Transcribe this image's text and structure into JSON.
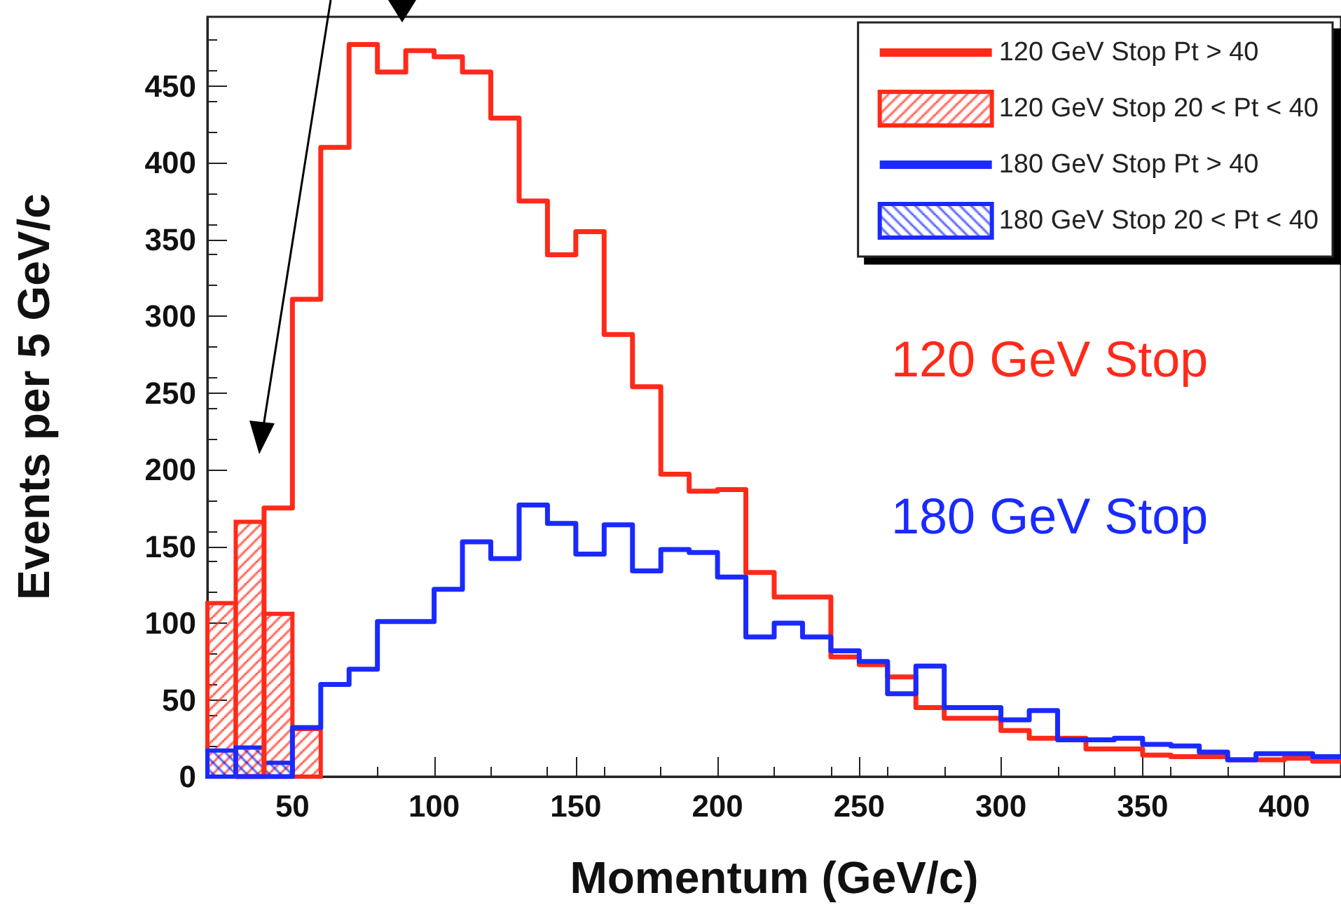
{
  "chart_data": {
    "type": "histogram",
    "xlabel": "Momentum (GeV/c)",
    "ylabel": "Events per 5 GeV/c",
    "bins": [
      20,
      30,
      40,
      50,
      60,
      70,
      80,
      90,
      100,
      110,
      120,
      130,
      140,
      150,
      160,
      170,
      180,
      190,
      200,
      210,
      220,
      230,
      240,
      250,
      260,
      270,
      280,
      290,
      300,
      310,
      320,
      330,
      340,
      350,
      360,
      370,
      380,
      390,
      400,
      410,
      420
    ],
    "series": [
      {
        "name": "120 GeV Stop Pt > 40",
        "type": "step",
        "color": "#ff2a1a",
        "x": [
          30,
          40,
          50,
          60,
          70,
          80,
          90,
          100,
          110,
          120,
          130,
          140,
          150,
          160,
          170,
          180,
          190,
          200,
          210,
          220,
          230,
          240,
          250,
          260,
          270,
          280,
          290,
          300,
          310,
          320,
          330,
          340,
          350,
          360,
          370,
          380,
          390,
          400,
          410,
          420
        ],
        "values": [
          0,
          0,
          175,
          311,
          410,
          477,
          459,
          473,
          469,
          459,
          429,
          375,
          340,
          355,
          288,
          254,
          197,
          186,
          187,
          133,
          117,
          117,
          78,
          73,
          65,
          45,
          38,
          38,
          30,
          25,
          25,
          18,
          18,
          14,
          13,
          13,
          11,
          11,
          12,
          10
        ]
      },
      {
        "name": "120 GeV Stop 20 < Pt < 40",
        "color": "#ff2a1a",
        "values": [
          113,
          166,
          106,
          31,
          0,
          0,
          0,
          0,
          0,
          0,
          0,
          0,
          0,
          0,
          0,
          0,
          0,
          0,
          0,
          0,
          0,
          0,
          0,
          0,
          0,
          0,
          0,
          0,
          0,
          0,
          0,
          0,
          0,
          0,
          0,
          0,
          0,
          0,
          0,
          0
        ]
      },
      {
        "name": "180 GeV Stop Pt > 40",
        "type": "step",
        "color": "#1a2aff",
        "x": [
          30,
          40,
          50,
          60,
          70,
          80,
          90,
          100,
          110,
          120,
          130,
          140,
          150,
          160,
          170,
          180,
          190,
          200,
          210,
          220,
          230,
          240,
          250,
          260,
          270,
          280,
          290,
          300,
          310,
          320,
          330,
          340,
          350,
          360,
          370,
          380,
          390,
          400,
          410,
          420
        ],
        "values": [
          0,
          0,
          0,
          32,
          60,
          70,
          101,
          101,
          122,
          153,
          142,
          177,
          165,
          145,
          164,
          134,
          148,
          146,
          130,
          91,
          100,
          91,
          82,
          75,
          54,
          72,
          45,
          45,
          37,
          43,
          24,
          24,
          25,
          21,
          20,
          16,
          11,
          15,
          15,
          13
        ]
      },
      {
        "name": "180 GeV Stop 20 < Pt < 40",
        "color": "#1a2aff",
        "values": [
          17,
          19,
          9,
          0,
          0,
          0,
          0,
          0,
          0,
          0,
          0,
          0,
          0,
          0,
          0,
          0,
          0,
          0,
          0,
          0,
          0,
          0,
          0,
          0,
          0,
          0,
          0,
          0,
          0,
          0,
          0,
          0,
          0,
          0,
          0,
          0,
          0,
          0,
          0,
          0
        ]
      }
    ],
    "annotations": [
      "120 GeV Stop",
      "180 GeV Stop"
    ],
    "xlim": [
      20,
      420
    ],
    "xticks": [
      50,
      100,
      150,
      200,
      250,
      300,
      350,
      400
    ],
    "ylim": [
      0,
      495
    ],
    "yticks": [
      0,
      50,
      100,
      150,
      200,
      250,
      300,
      350,
      400,
      450
    ],
    "grid": false,
    "legend": "top right"
  }
}
